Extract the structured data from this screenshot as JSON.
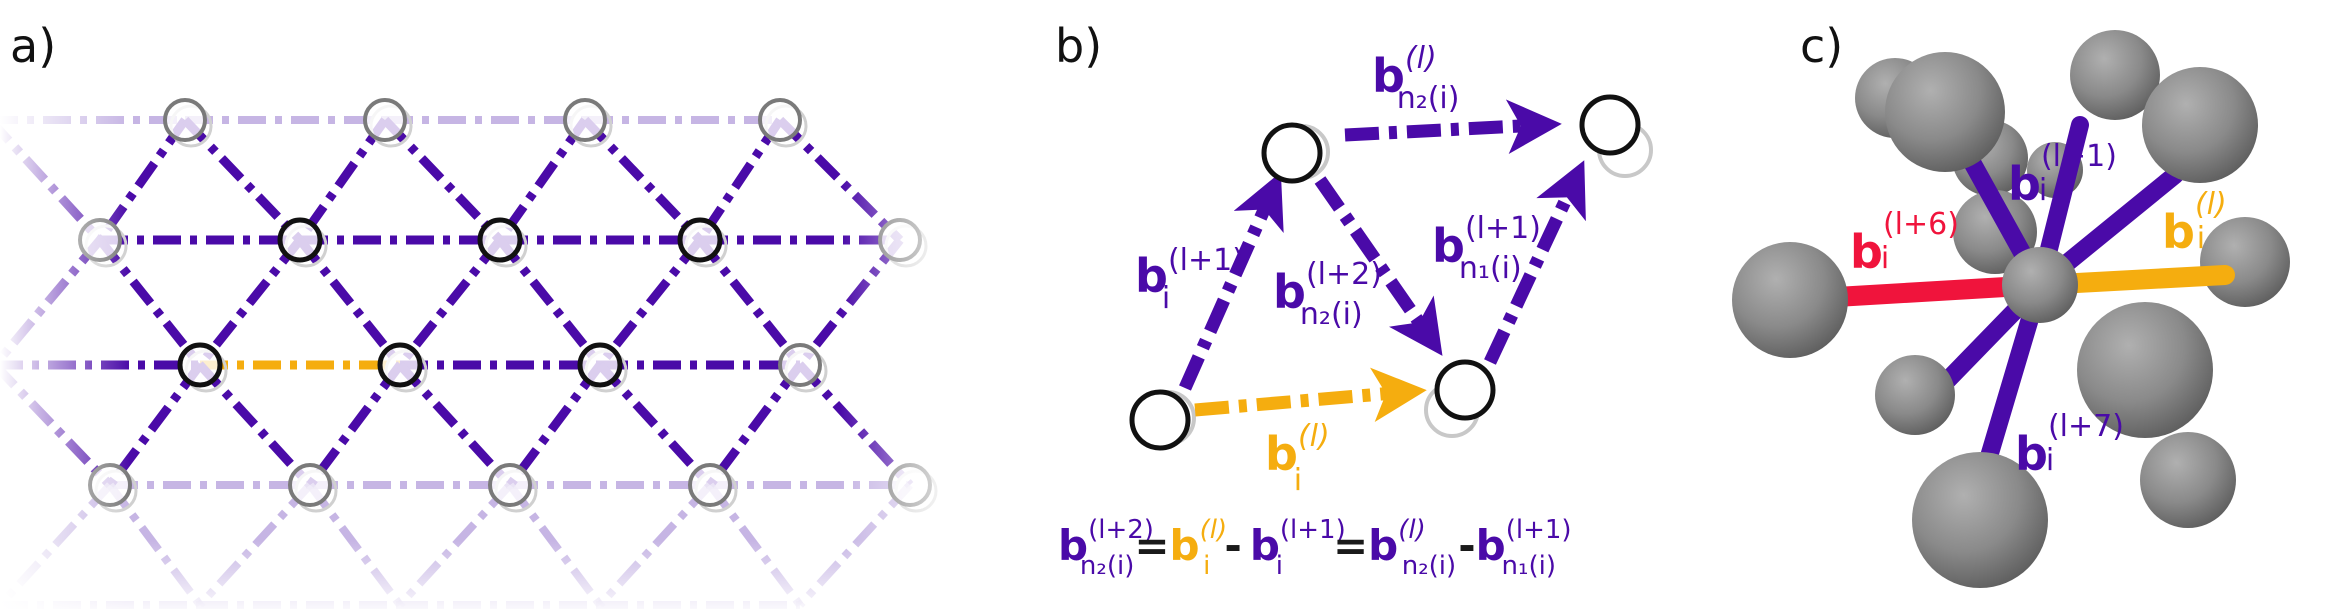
{
  "panels": {
    "a": {
      "letter": "a)"
    },
    "b": {
      "letter": "b)",
      "labels": {
        "top": {
          "base": "b",
          "sup": "(l)",
          "sub": "n₂(i)"
        },
        "left": {
          "base": "b",
          "sup": "(l+1)",
          "sub": "i"
        },
        "middle": {
          "base": "b",
          "sup": "(l+2)",
          "sub": "n₂(i)"
        },
        "right": {
          "base": "b",
          "sup": "(l+1)",
          "sub": "n₁(i)"
        },
        "bottom": {
          "base": "b",
          "sup": "(l)",
          "sub": "i"
        }
      },
      "equation": {
        "t1": {
          "base": "b",
          "sup": "(l+2)",
          "sub": "n₂(i)"
        },
        "op1": "=",
        "t2": {
          "base": "b",
          "sup": "(l)",
          "sub": "i"
        },
        "op2": "-",
        "t3": {
          "base": "b",
          "sup": "(l+1)",
          "sub": "i"
        },
        "op3": "=",
        "t4": {
          "base": "b",
          "sup": "(l)",
          "sub": "n₂(i)"
        },
        "op4": "-",
        "t5": {
          "base": "b",
          "sup": "(l+1)",
          "sub": "n₁(i)"
        }
      }
    },
    "c": {
      "letter": "c)",
      "labels": {
        "up": {
          "base": "b",
          "sup": "(l+1)",
          "sub": "i"
        },
        "red": {
          "base": "b",
          "sup": "(l+6)",
          "sub": "i"
        },
        "orange": {
          "base": "b",
          "sup": "(l)",
          "sub": "i"
        },
        "down": {
          "base": "b",
          "sup": "(l+7)",
          "sub": "i"
        }
      }
    }
  },
  "colors": {
    "purple": "#4a0aa8",
    "purple_light": "#b39ddb",
    "orange": "#f5ad0f",
    "red": "#f0143c",
    "gray_sphere": "#7a7a7a",
    "node_black": "#111111",
    "node_gray": "#bdbdbd"
  }
}
